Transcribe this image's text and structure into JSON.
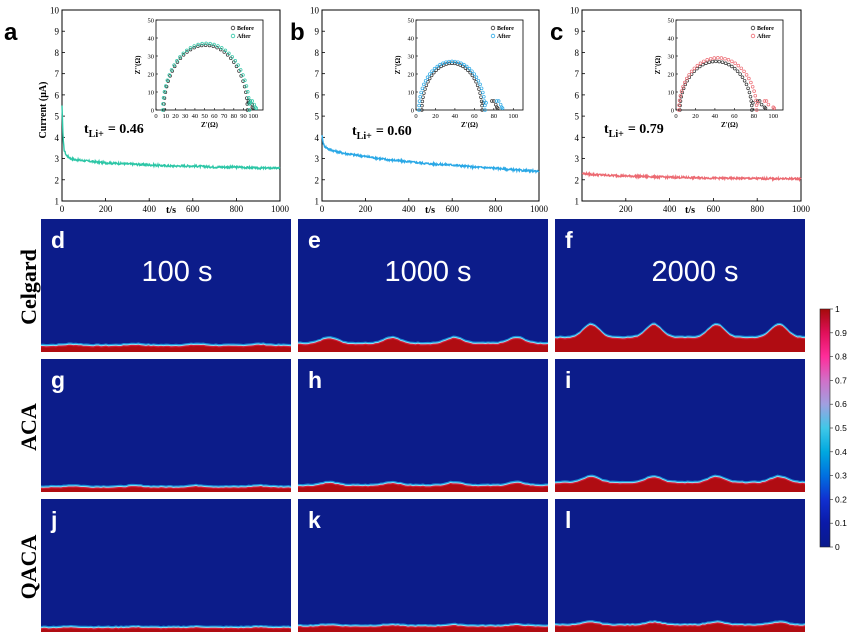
{
  "top_panels": [
    {
      "label": "a",
      "ylabel": "Current (μA)",
      "xlabel": "t/s",
      "annotation": {
        "main": "t",
        "sub": "Li+",
        "value": "= 0.46"
      },
      "color": "#2cc6a6"
    },
    {
      "label": "b",
      "ylabel": "Current (μA)",
      "xlabel": "t/s",
      "annotation": {
        "main": "t",
        "sub": "Li+",
        "value": "= 0.60"
      },
      "color": "#2aa8e6"
    },
    {
      "label": "c",
      "ylabel": "Current (μA)",
      "xlabel": "t/s",
      "annotation": {
        "main": "t",
        "sub": "Li+",
        "value": "= 0.79"
      },
      "color": "#ec6a72"
    }
  ],
  "inset": {
    "xlabel": "Z'(Ω)",
    "ylabel": "Z''(Ω)",
    "legend": [
      "Before",
      "After"
    ],
    "before_color": "#333333"
  },
  "maps": {
    "row_labels": [
      "Celgard",
      "ACA",
      "QACA"
    ],
    "panel_labels": [
      "d",
      "e",
      "f",
      "g",
      "h",
      "i",
      "j",
      "k",
      "l"
    ],
    "time_labels": [
      "100 s",
      "1000 s",
      "2000 s"
    ]
  },
  "colorbar": {
    "ticks": [
      "1",
      "0.9",
      "0.8",
      "0.7",
      "0.6",
      "0.5",
      "0.4",
      "0.3",
      "0.2",
      "0.1",
      "0"
    ],
    "colors": [
      "#a50a0a",
      "#e0105a",
      "#ff2d9a",
      "#d070c8",
      "#a0a0e0",
      "#40c8e8",
      "#00a8e0",
      "#0070e0",
      "#1030d0",
      "#0a1aa8",
      "#0a1a8c"
    ]
  },
  "chart_data": [
    {
      "type": "line",
      "panel": "a",
      "xlabel": "t/s",
      "ylabel": "Current (μA)",
      "xlim": [
        0,
        1000
      ],
      "ylim": [
        1,
        10
      ],
      "xticks": [
        0,
        200,
        400,
        600,
        800,
        1000
      ],
      "yticks": [
        1,
        2,
        3,
        4,
        5,
        6,
        7,
        8,
        9,
        10
      ],
      "x": [
        0,
        5,
        10,
        20,
        40,
        60,
        100,
        150,
        200,
        300,
        400,
        500,
        600,
        700,
        800,
        900,
        1000
      ],
      "y": [
        5.5,
        3.9,
        3.4,
        3.15,
        3.0,
        2.95,
        2.9,
        2.85,
        2.8,
        2.75,
        2.7,
        2.65,
        2.65,
        2.6,
        2.6,
        2.55,
        2.55
      ],
      "annotation": "tLi+ = 0.46",
      "inset": {
        "type": "scatter",
        "xlabel": "Z'(Ω)",
        "ylabel": "Z''(Ω)",
        "xlim": [
          0,
          110
        ],
        "ylim": [
          0,
          50
        ],
        "xticks": [
          0,
          10,
          20,
          30,
          40,
          50,
          60,
          70,
          80,
          90,
          100
        ],
        "yticks": [
          0,
          10,
          20,
          30,
          40,
          50
        ],
        "series": [
          {
            "name": "Before",
            "r0": 8,
            "d": 86,
            "peak": 36,
            "tail": [
              97,
              100
            ]
          },
          {
            "name": "After",
            "r0": 7,
            "d": 89,
            "peak": 37,
            "tail": [
              99,
              103
            ]
          }
        ]
      }
    },
    {
      "type": "line",
      "panel": "b",
      "xlabel": "t/s",
      "ylabel": "Current (μA)",
      "xlim": [
        0,
        1000
      ],
      "ylim": [
        1,
        10
      ],
      "xticks": [
        0,
        200,
        400,
        600,
        800,
        1000
      ],
      "yticks": [
        1,
        2,
        3,
        4,
        5,
        6,
        7,
        8,
        9,
        10
      ],
      "x": [
        0,
        5,
        10,
        30,
        60,
        100,
        200,
        300,
        400,
        500,
        600,
        700,
        800,
        900,
        1000
      ],
      "y": [
        4.1,
        3.75,
        3.6,
        3.45,
        3.35,
        3.25,
        3.1,
        2.95,
        2.85,
        2.75,
        2.7,
        2.6,
        2.55,
        2.45,
        2.4
      ],
      "annotation": "tLi+ = 0.60",
      "inset": {
        "type": "scatter",
        "xlabel": "Z'(Ω)",
        "ylabel": "Z''(Ω)",
        "xlim": [
          0,
          110
        ],
        "ylim": [
          0,
          50
        ],
        "xticks": [
          0,
          20,
          40,
          60,
          80,
          100
        ],
        "yticks": [
          0,
          10,
          20,
          30,
          40,
          50
        ],
        "series": [
          {
            "name": "Before",
            "r0": 6,
            "d": 62,
            "peak": 26,
            "tail": [
              80,
              84
            ]
          },
          {
            "name": "After",
            "r0": 3,
            "d": 68,
            "peak": 27,
            "tail": [
              85,
              89
            ]
          }
        ]
      }
    },
    {
      "type": "line",
      "panel": "c",
      "xlabel": "t/s",
      "ylabel": "Current (μA)",
      "xlim": [
        0,
        1000
      ],
      "ylim": [
        1,
        10
      ],
      "xticks": [
        200,
        400,
        600,
        800,
        1000
      ],
      "yticks": [
        1,
        2,
        3,
        4,
        5,
        6,
        7,
        8,
        9,
        10
      ],
      "x": [
        0,
        50,
        100,
        200,
        300,
        400,
        500,
        600,
        700,
        800,
        900,
        1000
      ],
      "y": [
        2.3,
        2.25,
        2.22,
        2.18,
        2.15,
        2.12,
        2.1,
        2.08,
        2.07,
        2.06,
        2.05,
        2.05
      ],
      "annotation": "tLi+ = 0.79",
      "inset": {
        "type": "scatter",
        "xlabel": "Z'(Ω)",
        "ylabel": "Z''(Ω)",
        "xlim": [
          0,
          110
        ],
        "ylim": [
          0,
          50
        ],
        "xticks": [
          0,
          20,
          40,
          60,
          80,
          100
        ],
        "yticks": [
          0,
          10,
          20,
          30,
          40,
          50
        ],
        "series": [
          {
            "name": "Before",
            "r0": 4,
            "d": 74,
            "peak": 27,
            "tail": [
              86,
              92
            ]
          },
          {
            "name": "After",
            "r0": 3,
            "d": 80,
            "peak": 29,
            "tail": [
              93,
              101
            ]
          }
        ]
      }
    },
    {
      "type": "heatmap",
      "panels": [
        "d",
        "e",
        "f",
        "g",
        "h",
        "i",
        "j",
        "k",
        "l"
      ],
      "rows": [
        "Celgard",
        "ACA",
        "QACA"
      ],
      "columns": [
        "100 s",
        "1000 s",
        "2000 s"
      ],
      "colorbar_range": [
        0,
        1
      ],
      "deposit_relative_thickness": [
        [
          1,
          1.4,
          2.6
        ],
        [
          0.7,
          1.0,
          1.6
        ],
        [
          0.6,
          0.9,
          1.1
        ]
      ],
      "bump_relative_amplitude": [
        [
          0.2,
          1.0,
          2.2
        ],
        [
          0.2,
          0.5,
          1.0
        ],
        [
          0.1,
          0.2,
          0.5
        ]
      ]
    }
  ]
}
